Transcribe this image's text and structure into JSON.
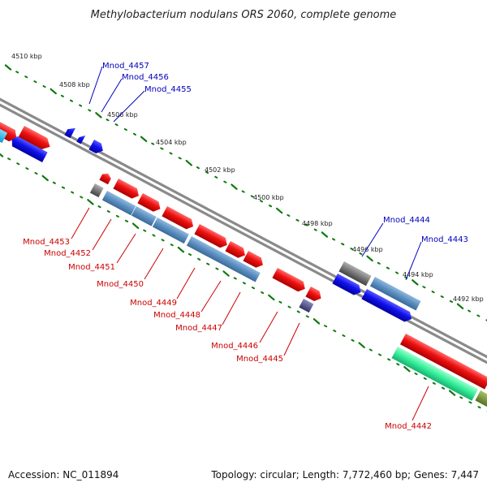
{
  "title": "Methylobacterium nodulans ORS 2060, complete genome",
  "footer": {
    "accession": "Accession: NC_011894",
    "topology": "Topology: circular; Length: 7,772,460 bp; Genes: 7,447"
  },
  "colors": {
    "forward_cds": "#ee1111",
    "reverse_cds": "#1111ee",
    "reverse_cds_light": "#5a8ec0",
    "gray": "#808080",
    "purple": "#55558a",
    "cyan": "#22bbee",
    "teal": "#33ee99",
    "olive": "#7a9a33",
    "forward_label": "#cc0000",
    "reverse_label": "#0000bb",
    "tick": "#0d7a0d",
    "backbone": "#8a8a8a"
  },
  "ticks": [
    "4510 kbp",
    "4508 kbp",
    "4506 kbp",
    "4504 kbp",
    "4502 kbp",
    "4500 kbp",
    "4498 kbp",
    "4496 kbp",
    "4494 kbp",
    "4492 kbp"
  ],
  "labels_top": [
    "Mnod_4457",
    "Mnod_4456",
    "Mnod_4455",
    "Mnod_4444",
    "Mnod_4443"
  ],
  "labels_bottom": [
    "Mnod_4453",
    "Mnod_4452",
    "Mnod_4451",
    "Mnod_4450",
    "Mnod_4449",
    "Mnod_4448",
    "Mnod_4447",
    "Mnod_4446",
    "Mnod_4445",
    "Mnod_4442"
  ]
}
